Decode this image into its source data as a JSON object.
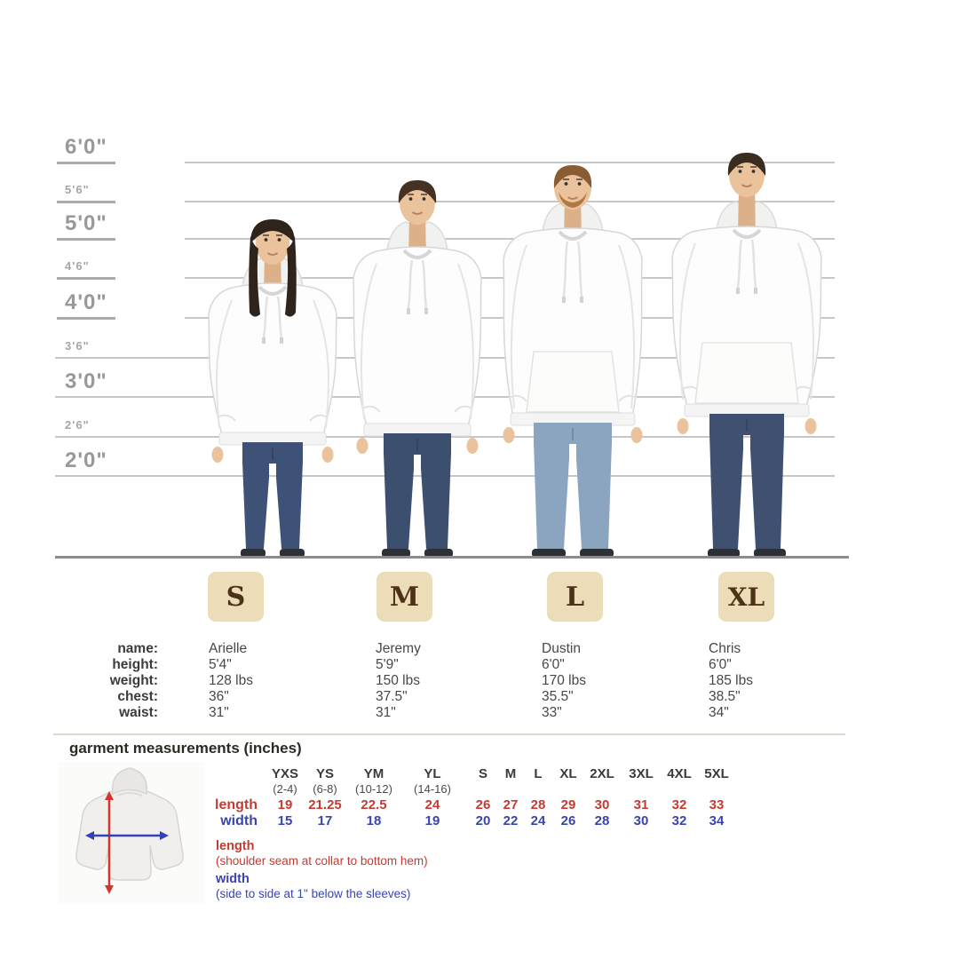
{
  "height_chart": {
    "markers": [
      {
        "label": "6'0\"",
        "major": true
      },
      {
        "label": "5'6\"",
        "major": false
      },
      {
        "label": "5'0\"",
        "major": true
      },
      {
        "label": "4'6\"",
        "major": false
      },
      {
        "label": "4'0\"",
        "major": true
      },
      {
        "label": "3'6\"",
        "major": false
      },
      {
        "label": "3'0\"",
        "major": true
      },
      {
        "label": "2'6\"",
        "major": false
      },
      {
        "label": "2'0\"",
        "major": true
      }
    ]
  },
  "models": {
    "row_labels": [
      "name:",
      "height:",
      "weight:",
      "chest:",
      "waist:"
    ],
    "columns": [
      {
        "size": "S",
        "name": "Arielle",
        "height": "5'4\"",
        "weight": "128 lbs",
        "chest": "36\"",
        "waist": "31\""
      },
      {
        "size": "M",
        "name": "Jeremy",
        "height": "5'9\"",
        "weight": "150 lbs",
        "chest": "37.5\"",
        "waist": "31\""
      },
      {
        "size": "L",
        "name": "Dustin",
        "height": "6'0\"",
        "weight": "170 lbs",
        "chest": "35.5\"",
        "waist": "33\""
      },
      {
        "size": "XL",
        "name": "Chris",
        "height": "6'0\"",
        "weight": "185 lbs",
        "chest": "38.5\"",
        "waist": "34\""
      }
    ]
  },
  "garment": {
    "title": "garment measurements (inches)",
    "length_row_label": "length",
    "width_row_label": "width",
    "columns": [
      {
        "size": "YXS",
        "age": "(2-4)",
        "length": "19",
        "width": "15"
      },
      {
        "size": "YS",
        "age": "(6-8)",
        "length": "21.25",
        "width": "17"
      },
      {
        "size": "YM",
        "age": "(10-12)",
        "length": "22.5",
        "width": "18"
      },
      {
        "size": "YL",
        "age": "(14-16)",
        "length": "24",
        "width": "19"
      },
      {
        "size": "S",
        "age": "",
        "length": "26",
        "width": "20"
      },
      {
        "size": "M",
        "age": "",
        "length": "27",
        "width": "22"
      },
      {
        "size": "L",
        "age": "",
        "length": "28",
        "width": "24"
      },
      {
        "size": "XL",
        "age": "",
        "length": "29",
        "width": "26"
      },
      {
        "size": "2XL",
        "age": "",
        "length": "30",
        "width": "28"
      },
      {
        "size": "3XL",
        "age": "",
        "length": "31",
        "width": "30"
      },
      {
        "size": "4XL",
        "age": "",
        "length": "32",
        "width": "32"
      },
      {
        "size": "5XL",
        "age": "",
        "length": "33",
        "width": "34"
      }
    ],
    "legend": {
      "length_title": "length",
      "length_desc": "(shoulder seam at collar to bottom hem)",
      "width_title": "width",
      "width_desc": "(side to side at 1\" below the sleeves)"
    }
  },
  "colors": {
    "badge_bg": "#ecdcb8",
    "badge_text": "#4d3219",
    "length_red": "#c43b32",
    "width_blue": "#3a44b0"
  }
}
